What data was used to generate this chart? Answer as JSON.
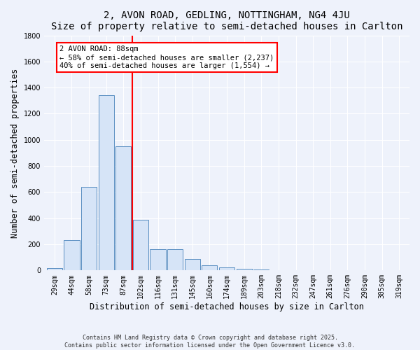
{
  "title": "2, AVON ROAD, GEDLING, NOTTINGHAM, NG4 4JU",
  "subtitle": "Size of property relative to semi-detached houses in Carlton",
  "xlabel": "Distribution of semi-detached houses by size in Carlton",
  "ylabel": "Number of semi-detached properties",
  "bar_labels": [
    "29sqm",
    "44sqm",
    "58sqm",
    "73sqm",
    "87sqm",
    "102sqm",
    "116sqm",
    "131sqm",
    "145sqm",
    "160sqm",
    "174sqm",
    "189sqm",
    "203sqm",
    "218sqm",
    "232sqm",
    "247sqm",
    "261sqm",
    "276sqm",
    "290sqm",
    "305sqm",
    "319sqm"
  ],
  "bar_values": [
    20,
    230,
    640,
    1340,
    950,
    390,
    160,
    160,
    85,
    40,
    25,
    10,
    5,
    2,
    1,
    1,
    1,
    1,
    0,
    0,
    0
  ],
  "bar_color": "#d6e4f7",
  "bar_edge_color": "#5a8fc2",
  "vline_color": "red",
  "annotation_text": "2 AVON ROAD: 88sqm\n← 58% of semi-detached houses are smaller (2,237)\n40% of semi-detached houses are larger (1,554) →",
  "annotation_box_color": "white",
  "annotation_box_edge_color": "red",
  "ylim": [
    0,
    1800
  ],
  "yticks": [
    0,
    200,
    400,
    600,
    800,
    1000,
    1200,
    1400,
    1600,
    1800
  ],
  "bg_color": "#eef2fb",
  "footer_text": "Contains HM Land Registry data © Crown copyright and database right 2025.\nContains public sector information licensed under the Open Government Licence v3.0.",
  "title_fontsize": 10,
  "axis_label_fontsize": 8.5,
  "tick_fontsize": 7,
  "annotation_fontsize": 7.5
}
